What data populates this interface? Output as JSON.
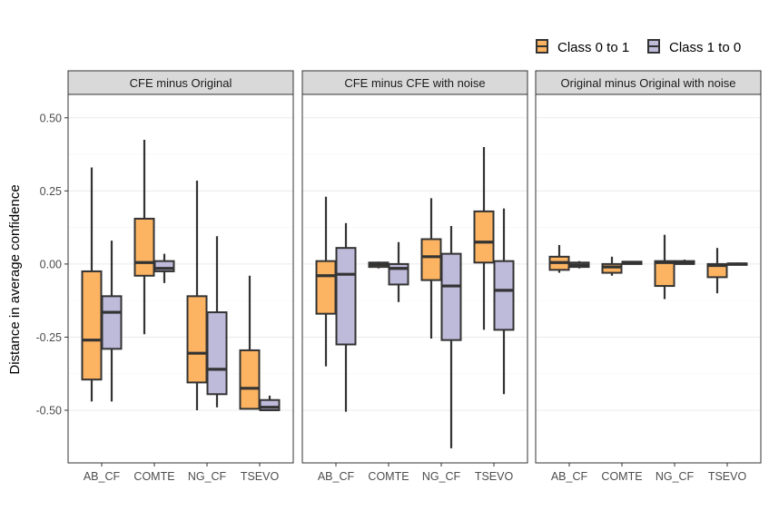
{
  "chart_data": {
    "type": "boxplot",
    "ylabel": "Distance in average confidence",
    "xlabel": "",
    "ylim": [
      -0.68,
      0.58
    ],
    "yticks": [
      0.5,
      0.25,
      0.0,
      -0.25,
      -0.5
    ],
    "ytick_labels": [
      "0.50",
      "0.25",
      "0.00",
      "-0.25",
      "-0.50"
    ],
    "grid": true,
    "legend_position": "top-right",
    "categories": [
      "AB_CF",
      "COMTE",
      "NG_CF",
      "TSEVO"
    ],
    "series": [
      {
        "name": "Class 0 to 1",
        "color": "#FDB462"
      },
      {
        "name": "Class 1 to 0",
        "color": "#BEBADA"
      }
    ],
    "panels": [
      {
        "title": "CFE minus Original",
        "boxes": [
          {
            "category": "AB_CF",
            "series": "Class 0 to 1",
            "whisker_low": -0.47,
            "q1": -0.395,
            "median": -0.26,
            "q3": -0.025,
            "whisker_high": 0.33
          },
          {
            "category": "AB_CF",
            "series": "Class 1 to 0",
            "whisker_low": -0.47,
            "q1": -0.29,
            "median": -0.165,
            "q3": -0.11,
            "whisker_high": 0.08
          },
          {
            "category": "COMTE",
            "series": "Class 0 to 1",
            "whisker_low": -0.24,
            "q1": -0.04,
            "median": 0.005,
            "q3": 0.155,
            "whisker_high": 0.425
          },
          {
            "category": "COMTE",
            "series": "Class 1 to 0",
            "whisker_low": -0.065,
            "q1": -0.025,
            "median": -0.015,
            "q3": 0.01,
            "whisker_high": 0.035
          },
          {
            "category": "NG_CF",
            "series": "Class 0 to 1",
            "whisker_low": -0.5,
            "q1": -0.405,
            "median": -0.305,
            "q3": -0.11,
            "whisker_high": 0.285
          },
          {
            "category": "NG_CF",
            "series": "Class 1 to 0",
            "whisker_low": -0.49,
            "q1": -0.445,
            "median": -0.36,
            "q3": -0.165,
            "whisker_high": 0.095
          },
          {
            "category": "TSEVO",
            "series": "Class 0 to 1",
            "whisker_low": -0.495,
            "q1": -0.495,
            "median": -0.425,
            "q3": -0.295,
            "whisker_high": -0.04
          },
          {
            "category": "TSEVO",
            "series": "Class 1 to 0",
            "whisker_low": -0.5,
            "q1": -0.5,
            "median": -0.49,
            "q3": -0.465,
            "whisker_high": -0.45
          }
        ]
      },
      {
        "title": "CFE minus CFE with noise",
        "boxes": [
          {
            "category": "AB_CF",
            "series": "Class 0 to 1",
            "whisker_low": -0.35,
            "q1": -0.17,
            "median": -0.04,
            "q3": 0.01,
            "whisker_high": 0.23
          },
          {
            "category": "AB_CF",
            "series": "Class 1 to 0",
            "whisker_low": -0.505,
            "q1": -0.275,
            "median": -0.035,
            "q3": 0.055,
            "whisker_high": 0.14
          },
          {
            "category": "COMTE",
            "series": "Class 0 to 1",
            "whisker_low": -0.015,
            "q1": -0.01,
            "median": -0.002,
            "q3": 0.005,
            "whisker_high": 0.008
          },
          {
            "category": "COMTE",
            "series": "Class 1 to 0",
            "whisker_low": -0.13,
            "q1": -0.07,
            "median": -0.015,
            "q3": 0.0,
            "whisker_high": 0.075
          },
          {
            "category": "NG_CF",
            "series": "Class 0 to 1",
            "whisker_low": -0.255,
            "q1": -0.055,
            "median": 0.025,
            "q3": 0.085,
            "whisker_high": 0.225
          },
          {
            "category": "NG_CF",
            "series": "Class 1 to 0",
            "whisker_low": -0.63,
            "q1": -0.26,
            "median": -0.075,
            "q3": 0.035,
            "whisker_high": 0.13
          },
          {
            "category": "TSEVO",
            "series": "Class 0 to 1",
            "whisker_low": -0.225,
            "q1": 0.005,
            "median": 0.075,
            "q3": 0.18,
            "whisker_high": 0.4
          },
          {
            "category": "TSEVO",
            "series": "Class 1 to 0",
            "whisker_low": -0.445,
            "q1": -0.225,
            "median": -0.09,
            "q3": 0.01,
            "whisker_high": 0.19
          }
        ]
      },
      {
        "title": "Original minus Original with noise",
        "boxes": [
          {
            "category": "AB_CF",
            "series": "Class 0 to 1",
            "whisker_low": -0.03,
            "q1": -0.02,
            "median": 0.005,
            "q3": 0.025,
            "whisker_high": 0.065
          },
          {
            "category": "AB_CF",
            "series": "Class 1 to 0",
            "whisker_low": -0.015,
            "q1": -0.01,
            "median": -0.003,
            "q3": 0.005,
            "whisker_high": 0.01
          },
          {
            "category": "COMTE",
            "series": "Class 0 to 1",
            "whisker_low": -0.04,
            "q1": -0.03,
            "median": -0.01,
            "q3": 0.0,
            "whisker_high": 0.025
          },
          {
            "category": "COMTE",
            "series": "Class 1 to 0",
            "whisker_low": 0.0,
            "q1": 0.0,
            "median": 0.005,
            "q3": 0.008,
            "whisker_high": 0.01
          },
          {
            "category": "NG_CF",
            "series": "Class 0 to 1",
            "whisker_low": -0.12,
            "q1": -0.075,
            "median": 0.005,
            "q3": 0.01,
            "whisker_high": 0.1
          },
          {
            "category": "NG_CF",
            "series": "Class 1 to 0",
            "whisker_low": 0.0,
            "q1": 0.0,
            "median": 0.005,
            "q3": 0.01,
            "whisker_high": 0.015
          },
          {
            "category": "TSEVO",
            "series": "Class 0 to 1",
            "whisker_low": -0.1,
            "q1": -0.045,
            "median": -0.005,
            "q3": 0.0,
            "whisker_high": 0.055
          },
          {
            "category": "TSEVO",
            "series": "Class 1 to 0",
            "whisker_low": -0.005,
            "q1": -0.003,
            "median": 0.0,
            "q3": 0.002,
            "whisker_high": 0.005
          }
        ]
      }
    ]
  }
}
